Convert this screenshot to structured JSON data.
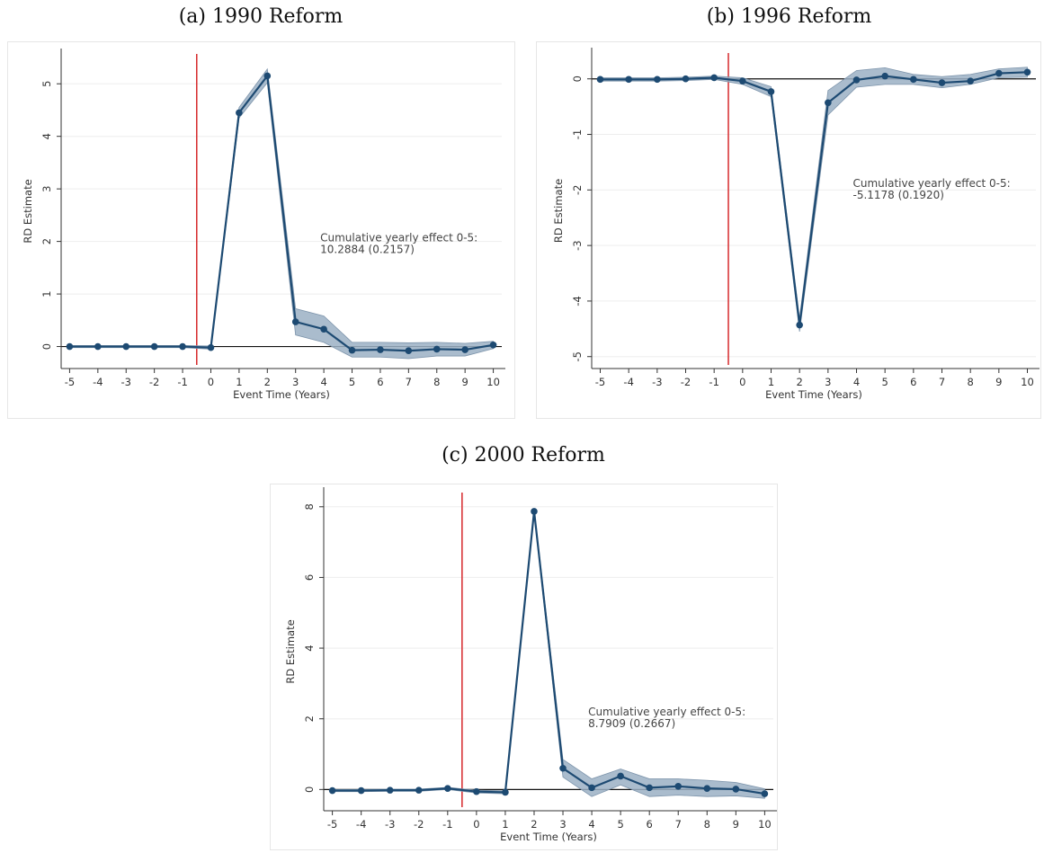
{
  "chart_data": [
    {
      "type": "line",
      "title": "(a) 1990 Reform",
      "xlabel": "Event Time (Years)",
      "ylabel": "RD Estimate",
      "x": [
        -5,
        -4,
        -3,
        -2,
        -1,
        0,
        1,
        2,
        3,
        4,
        5,
        6,
        7,
        8,
        9,
        10
      ],
      "values": [
        0,
        0,
        0,
        0,
        0,
        -0.02,
        4.45,
        5.15,
        0.47,
        0.33,
        -0.07,
        -0.06,
        -0.08,
        -0.05,
        -0.06,
        0.03
      ],
      "ci_lower": [
        -0.02,
        -0.02,
        -0.02,
        -0.02,
        -0.02,
        -0.05,
        4.35,
        5.02,
        0.22,
        0.08,
        -0.2,
        -0.2,
        -0.23,
        -0.18,
        -0.18,
        -0.04
      ],
      "ci_upper": [
        0.02,
        0.02,
        0.02,
        0.02,
        0.02,
        0.01,
        4.55,
        5.28,
        0.72,
        0.58,
        0.08,
        0.08,
        0.07,
        0.08,
        0.06,
        0.1
      ],
      "xticks": [
        -5,
        -4,
        -3,
        -2,
        -1,
        0,
        1,
        2,
        3,
        4,
        5,
        6,
        7,
        8,
        9,
        10
      ],
      "yticks": [
        0,
        1,
        2,
        3,
        4,
        5
      ],
      "ylim": [
        -0.35,
        5.5
      ],
      "event_line_x": -0.5,
      "annotation": [
        "Cumulative yearly effect 0-5:",
        "10.2884 (0.2157)"
      ],
      "annotation_pos": [
        4,
        2.0
      ],
      "grid": true
    },
    {
      "type": "line",
      "title": "(b) 1996 Reform",
      "xlabel": "Event Time (Years)",
      "ylabel": "RD Estimate",
      "x": [
        -5,
        -4,
        -3,
        -2,
        -1,
        0,
        1,
        2,
        3,
        4,
        5,
        6,
        7,
        8,
        9,
        10
      ],
      "values": [
        -0.01,
        -0.01,
        -0.01,
        0,
        0.02,
        -0.04,
        -0.23,
        -4.43,
        -0.43,
        -0.02,
        0.05,
        -0.01,
        -0.07,
        -0.04,
        0.1,
        0.12
      ],
      "ci_lower": [
        -0.04,
        -0.04,
        -0.04,
        -0.03,
        -0.01,
        -0.1,
        -0.32,
        -4.55,
        -0.65,
        -0.15,
        -0.1,
        -0.1,
        -0.16,
        -0.1,
        0.02,
        0.03
      ],
      "ci_upper": [
        0.02,
        0.02,
        0.02,
        0.03,
        0.05,
        0.02,
        -0.14,
        -4.31,
        -0.21,
        0.15,
        0.2,
        0.08,
        0.04,
        0.08,
        0.18,
        0.21
      ],
      "xticks": [
        -5,
        -4,
        -3,
        -2,
        -1,
        0,
        1,
        2,
        3,
        4,
        5,
        6,
        7,
        8,
        9,
        10
      ],
      "yticks": [
        -5,
        -4,
        -3,
        -2,
        -1,
        0
      ],
      "ylim": [
        -5.15,
        0.4
      ],
      "event_line_x": -0.5,
      "annotation": [
        "Cumulative yearly effect 0-5:",
        "-5.1178 (0.1920)"
      ],
      "annotation_pos": [
        4,
        -1.95
      ],
      "grid": true
    },
    {
      "type": "line",
      "title": "(c) 2000 Reform",
      "xlabel": "Event Time (Years)",
      "ylabel": "RD Estimate",
      "x": [
        -5,
        -4,
        -3,
        -2,
        -1,
        0,
        1,
        2,
        3,
        4,
        5,
        6,
        7,
        8,
        9,
        10
      ],
      "values": [
        -0.03,
        -0.03,
        -0.02,
        -0.02,
        0.03,
        -0.06,
        -0.08,
        7.87,
        0.6,
        0.05,
        0.38,
        0.05,
        0.09,
        0.03,
        0.01,
        -0.12
      ],
      "ci_lower": [
        -0.06,
        -0.06,
        -0.05,
        -0.05,
        0,
        -0.1,
        -0.12,
        7.8,
        0.35,
        -0.2,
        0.13,
        -0.2,
        -0.16,
        -0.2,
        -0.18,
        -0.25
      ],
      "ci_upper": [
        0,
        0,
        0.01,
        0.01,
        0.06,
        -0.02,
        -0.04,
        7.94,
        0.85,
        0.3,
        0.58,
        0.3,
        0.3,
        0.26,
        0.2,
        0.02
      ],
      "xticks": [
        -5,
        -4,
        -3,
        -2,
        -1,
        0,
        1,
        2,
        3,
        4,
        5,
        6,
        7,
        8,
        9,
        10
      ],
      "yticks": [
        0,
        2,
        4,
        6,
        8
      ],
      "ylim": [
        -0.5,
        8.3
      ],
      "event_line_x": -0.5,
      "annotation": [
        "Cumulative yearly effect 0-5:",
        "8.7909 (0.2667)"
      ],
      "annotation_pos": [
        4,
        2.1
      ],
      "grid": true
    }
  ]
}
